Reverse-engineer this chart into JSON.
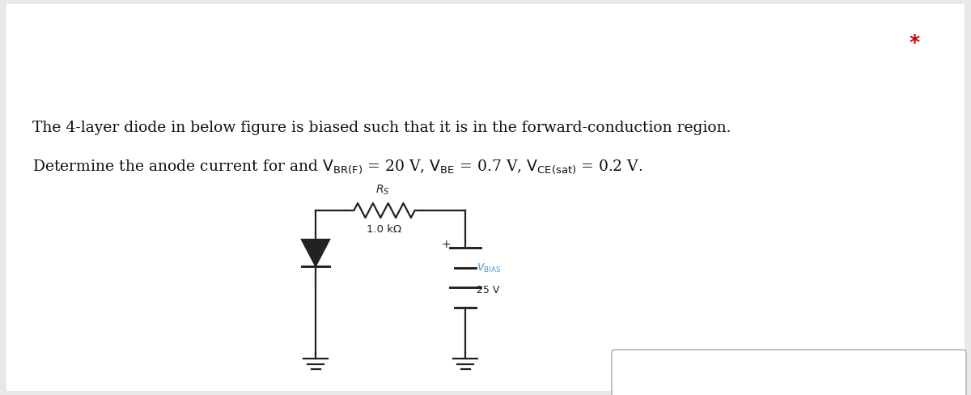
{
  "bg_color": "#e8e8e8",
  "panel_color": "#ffffff",
  "text_line1": "The 4-layer diode in below figure is biased such that it is in the forward-conduction region.",
  "star_text": "*",
  "star_color": "#cc0000",
  "resistor_label": "1.0 kΩ",
  "vbias_color": "#4499cc",
  "voltage_label": "25 V",
  "circuit_color": "#222222",
  "text_color": "#111111",
  "font_size_main": 13.5
}
